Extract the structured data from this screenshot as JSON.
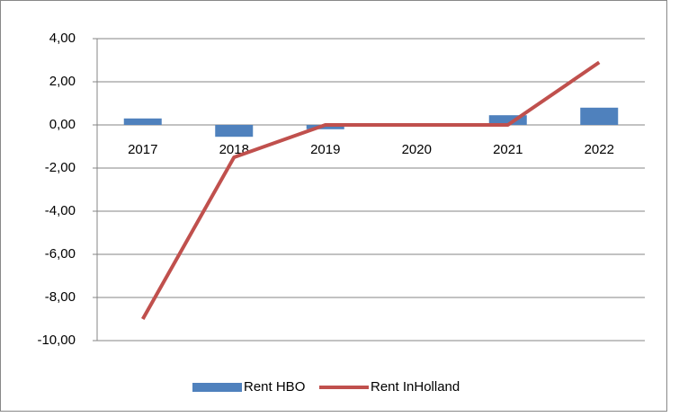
{
  "chart_data": {
    "type": "bar",
    "categories": [
      "2017",
      "2018",
      "2019",
      "2020",
      "2021",
      "2022"
    ],
    "series": [
      {
        "name": "Rent HBO",
        "type": "bar",
        "color": "#4f81bd",
        "values": [
          0.3,
          -0.55,
          -0.2,
          0.05,
          0.45,
          0.8
        ]
      },
      {
        "name": "Rent InHolland",
        "type": "line",
        "color": "#c0504d",
        "values": [
          -9,
          -1.5,
          0,
          0,
          0,
          2.9
        ]
      }
    ],
    "ylim": [
      -10,
      4
    ],
    "yticks": [
      {
        "value": -10,
        "label": "-10,00"
      },
      {
        "value": -8,
        "label": "-8,00"
      },
      {
        "value": -6,
        "label": "-6,00"
      },
      {
        "value": -4,
        "label": "-4,00"
      },
      {
        "value": -2,
        "label": "-2,00"
      },
      {
        "value": 0,
        "label": "0,00"
      },
      {
        "value": 2,
        "label": "2,00"
      },
      {
        "value": 4,
        "label": "4,00"
      }
    ],
    "grid": true,
    "negative_label_color": "#ff0000",
    "legend": "bottom"
  }
}
